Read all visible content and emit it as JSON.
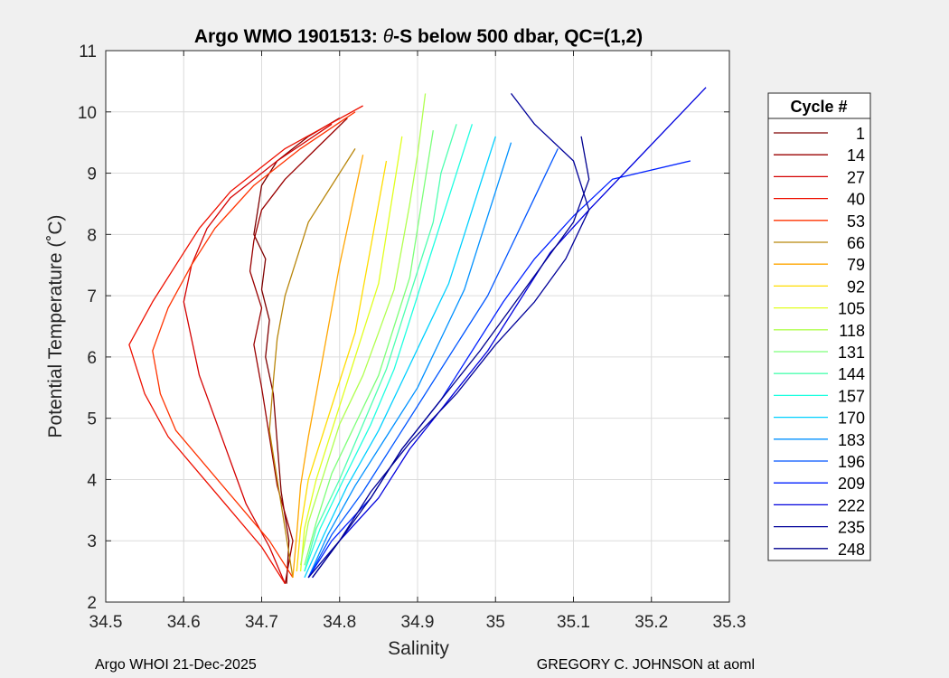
{
  "chart_data": {
    "type": "line",
    "title_prefix": "Argo WMO 1901513: ",
    "title_theta": "θ",
    "title_suffix": "-S below 500 dbar,  QC=(1,2)",
    "xlabel": "Salinity",
    "ylabel": "Potential Temperature (˚C)",
    "xlim": [
      34.5,
      35.3
    ],
    "ylim": [
      2,
      11
    ],
    "xticks": [
      "34.5",
      "34.6",
      "34.7",
      "34.8",
      "34.9",
      "35",
      "35.1",
      "35.2",
      "35.3"
    ],
    "yticks": [
      "2",
      "3",
      "4",
      "5",
      "6",
      "7",
      "8",
      "9",
      "10",
      "11"
    ],
    "grid": true,
    "colormap": "jet",
    "legend": {
      "title": "Cycle #",
      "placement": "right-outside",
      "entries": [
        "1",
        "14",
        "27",
        "40",
        "53",
        "66",
        "79",
        "92",
        "105",
        "118",
        "131",
        "144",
        "157",
        "170",
        "183",
        "196",
        "209",
        "222",
        "235",
        "248"
      ],
      "colors": [
        "#7f0000",
        "#990000",
        "#d40000",
        "#ee1000",
        "#ff3300",
        "#b8860b",
        "#ffa600",
        "#ffdd00",
        "#e1ff1e",
        "#b0ff4f",
        "#7dff7a",
        "#4effb0",
        "#1fffe0",
        "#00d0ff",
        "#0090ff",
        "#0055ff",
        "#0020ff",
        "#0000dd",
        "#000099",
        "#00008f"
      ]
    },
    "series": [
      {
        "cycle": 1,
        "x": [
          34.732,
          34.735,
          34.725,
          34.72,
          34.715,
          34.705,
          34.71,
          34.7,
          34.705,
          34.69,
          34.695,
          34.7,
          34.72,
          34.76,
          34.8
        ],
        "y": [
          2.3,
          3,
          3.8,
          4.6,
          5.4,
          6.0,
          6.6,
          7.1,
          7.6,
          8.0,
          8.4,
          8.8,
          9.2,
          9.6,
          9.9
        ]
      },
      {
        "cycle": 14,
        "x": [
          34.73,
          34.74,
          34.72,
          34.71,
          34.7,
          34.69,
          34.7,
          34.685,
          34.69,
          34.7,
          34.73,
          34.77,
          34.81
        ],
        "y": [
          2.3,
          3.0,
          3.9,
          4.7,
          5.5,
          6.2,
          6.8,
          7.4,
          7.9,
          8.4,
          8.9,
          9.4,
          9.9
        ]
      },
      {
        "cycle": 27,
        "x": [
          34.73,
          34.71,
          34.68,
          34.66,
          34.64,
          34.62,
          34.61,
          34.6,
          34.61,
          34.63,
          34.66,
          34.72,
          34.79
        ],
        "y": [
          2.3,
          2.9,
          3.6,
          4.3,
          5.0,
          5.7,
          6.3,
          6.9,
          7.5,
          8.1,
          8.6,
          9.2,
          9.8
        ]
      },
      {
        "cycle": 40,
        "x": [
          34.73,
          34.7,
          34.66,
          34.62,
          34.58,
          34.55,
          34.53,
          34.56,
          34.59,
          34.62,
          34.66,
          34.73,
          34.83
        ],
        "y": [
          2.3,
          2.9,
          3.5,
          4.1,
          4.7,
          5.4,
          6.2,
          6.9,
          7.5,
          8.1,
          8.7,
          9.4,
          10.1
        ]
      },
      {
        "cycle": 53,
        "x": [
          34.74,
          34.71,
          34.67,
          34.63,
          34.59,
          34.57,
          34.56,
          34.58,
          34.61,
          34.64,
          34.69,
          34.75,
          34.82
        ],
        "y": [
          2.4,
          3.0,
          3.6,
          4.2,
          4.8,
          5.4,
          6.1,
          6.8,
          7.5,
          8.1,
          8.8,
          9.4,
          10.0
        ]
      },
      {
        "cycle": 66,
        "x": [
          34.74,
          34.73,
          34.72,
          34.71,
          34.715,
          34.72,
          34.73,
          34.745,
          34.76,
          34.79,
          34.82
        ],
        "y": [
          2.4,
          3.2,
          4.0,
          4.8,
          5.6,
          6.3,
          7.0,
          7.6,
          8.2,
          8.8,
          9.4
        ]
      },
      {
        "cycle": 79,
        "x": [
          34.74,
          34.745,
          34.75,
          34.76,
          34.77,
          34.78,
          34.79,
          34.8,
          34.81,
          34.82,
          34.83
        ],
        "y": [
          2.4,
          3.1,
          3.9,
          4.7,
          5.4,
          6.1,
          6.8,
          7.5,
          8.1,
          8.7,
          9.3
        ]
      },
      {
        "cycle": 92,
        "x": [
          34.745,
          34.75,
          34.76,
          34.78,
          34.8,
          34.82,
          34.83,
          34.84,
          34.85,
          34.86
        ],
        "y": [
          2.5,
          3.2,
          4.0,
          4.8,
          5.6,
          6.4,
          7.1,
          7.8,
          8.5,
          9.2
        ]
      },
      {
        "cycle": 105,
        "x": [
          34.75,
          34.755,
          34.77,
          34.79,
          34.81,
          34.83,
          34.85,
          34.86,
          34.87,
          34.88
        ],
        "y": [
          2.5,
          3.2,
          4.0,
          4.8,
          5.6,
          6.4,
          7.2,
          8.0,
          8.8,
          9.6
        ]
      },
      {
        "cycle": 118,
        "x": [
          34.75,
          34.76,
          34.78,
          34.8,
          34.83,
          34.85,
          34.87,
          34.88,
          34.89,
          34.9,
          34.91
        ],
        "y": [
          2.6,
          3.3,
          4.1,
          4.9,
          5.7,
          6.4,
          7.1,
          7.8,
          8.5,
          9.3,
          10.3
        ]
      },
      {
        "cycle": 131,
        "x": [
          34.755,
          34.77,
          34.79,
          34.82,
          34.85,
          34.87,
          34.89,
          34.9,
          34.91,
          34.92
        ],
        "y": [
          2.6,
          3.3,
          4.1,
          4.9,
          5.7,
          6.5,
          7.3,
          8.1,
          8.9,
          9.7
        ]
      },
      {
        "cycle": 144,
        "x": [
          34.755,
          34.77,
          34.8,
          34.83,
          34.86,
          34.88,
          34.9,
          34.92,
          34.93,
          34.95
        ],
        "y": [
          2.5,
          3.2,
          4.0,
          4.9,
          5.8,
          6.6,
          7.4,
          8.2,
          9.0,
          9.8
        ]
      },
      {
        "cycle": 157,
        "x": [
          34.755,
          34.775,
          34.805,
          34.84,
          34.87,
          34.89,
          34.91,
          34.93,
          34.95,
          34.97
        ],
        "y": [
          2.5,
          3.2,
          4.0,
          4.9,
          5.8,
          6.6,
          7.4,
          8.2,
          9.0,
          9.8
        ]
      },
      {
        "cycle": 170,
        "x": [
          34.755,
          34.78,
          34.81,
          34.85,
          34.88,
          34.91,
          34.94,
          34.96,
          34.98,
          35.0
        ],
        "y": [
          2.4,
          3.1,
          3.9,
          4.8,
          5.6,
          6.4,
          7.2,
          8.0,
          8.8,
          9.6
        ]
      },
      {
        "cycle": 183,
        "x": [
          34.76,
          34.785,
          34.82,
          34.86,
          34.9,
          34.93,
          34.96,
          34.98,
          35.0,
          35.02
        ],
        "y": [
          2.4,
          3.1,
          3.9,
          4.7,
          5.5,
          6.3,
          7.1,
          7.9,
          8.7,
          9.5
        ]
      },
      {
        "cycle": 196,
        "x": [
          34.76,
          34.79,
          34.83,
          34.87,
          34.91,
          34.95,
          34.99,
          35.02,
          35.05,
          35.08
        ],
        "y": [
          2.4,
          3.1,
          3.8,
          4.6,
          5.4,
          6.2,
          7.0,
          7.8,
          8.6,
          9.4
        ]
      },
      {
        "cycle": 209,
        "x": [
          34.76,
          34.79,
          34.84,
          34.88,
          34.93,
          34.97,
          35.01,
          35.05,
          35.1,
          35.15,
          35.25
        ],
        "y": [
          2.4,
          3.0,
          3.7,
          4.5,
          5.3,
          6.1,
          6.9,
          7.6,
          8.3,
          8.9,
          9.2
        ]
      },
      {
        "cycle": 222,
        "x": [
          34.765,
          34.8,
          34.85,
          34.89,
          34.94,
          34.99,
          35.03,
          35.07,
          35.12,
          35.18,
          35.27
        ],
        "y": [
          2.4,
          3.0,
          3.7,
          4.5,
          5.3,
          6.1,
          6.9,
          7.7,
          8.4,
          9.2,
          10.4
        ]
      },
      {
        "cycle": 235,
        "x": [
          34.76,
          34.8,
          34.84,
          34.89,
          34.95,
          35.0,
          35.05,
          35.09,
          35.12,
          35.1,
          35.05,
          35.02
        ],
        "y": [
          2.4,
          3.0,
          3.8,
          4.6,
          5.4,
          6.2,
          6.9,
          7.6,
          8.4,
          9.2,
          9.8,
          10.3
        ]
      },
      {
        "cycle": 248,
        "x": [
          34.765,
          34.8,
          34.84,
          34.88,
          34.93,
          34.98,
          35.02,
          35.06,
          35.1,
          35.12,
          35.11
        ],
        "y": [
          2.4,
          3.0,
          3.7,
          4.5,
          5.3,
          6.1,
          6.8,
          7.5,
          8.2,
          8.9,
          9.6
        ]
      }
    ]
  },
  "footer": {
    "left": "Argo WHOI 21-Dec-2025",
    "right": "GREGORY C. JOHNSON at aoml"
  }
}
